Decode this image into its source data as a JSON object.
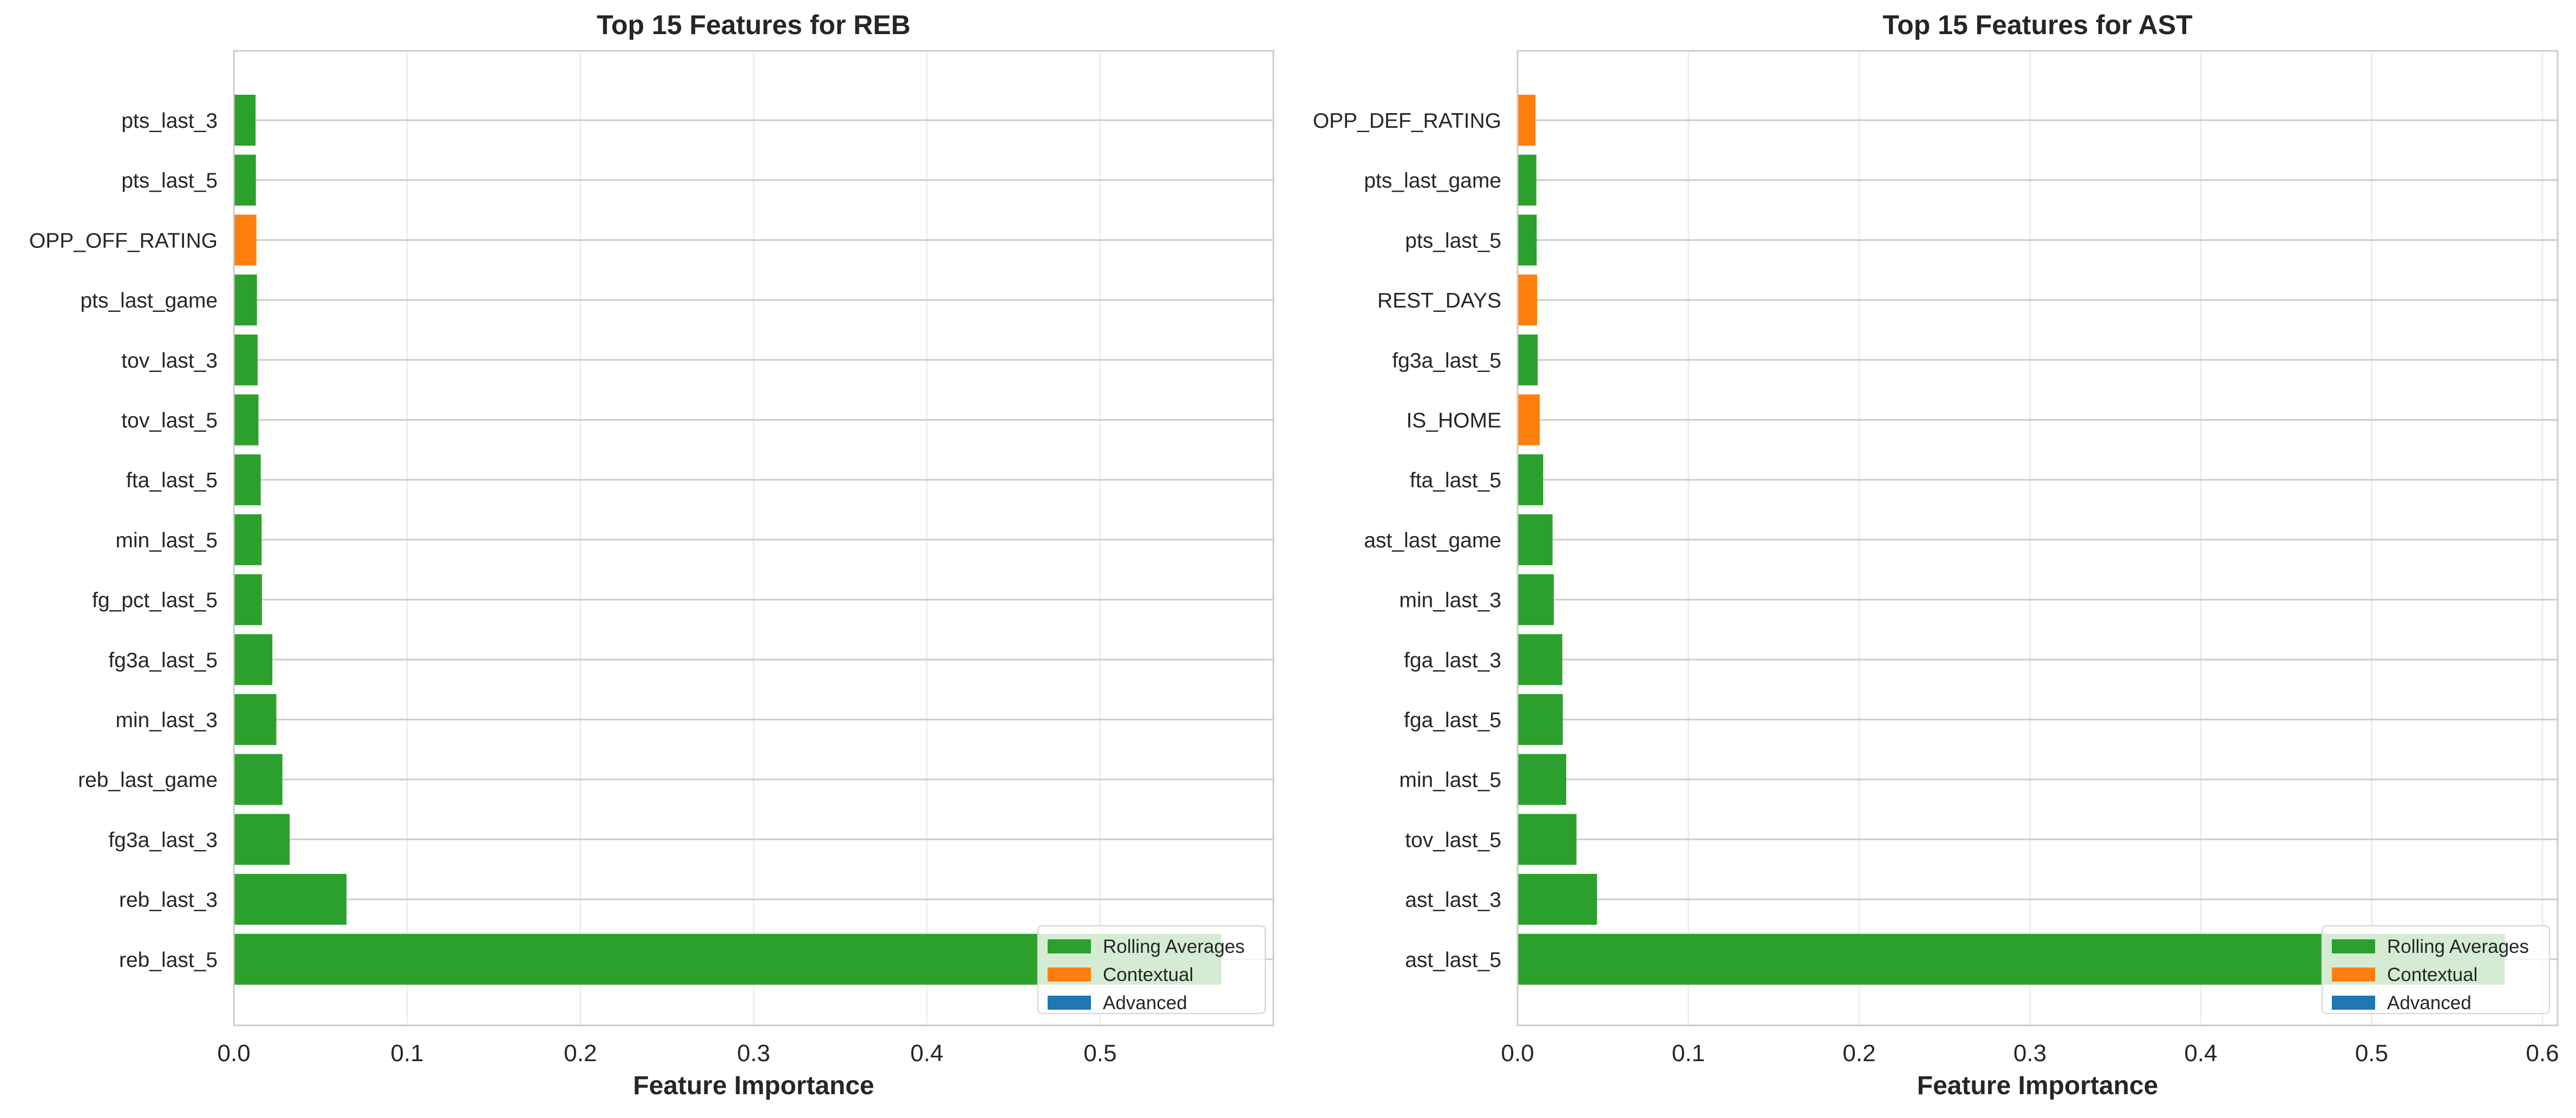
{
  "figure": {
    "background": "#ffffff",
    "grid_color": "#cccccc",
    "frame_color": "#cccccc",
    "text_color": "#262626",
    "colors": {
      "rolling_averages": "#2ca02c",
      "contextual": "#ff7f0e",
      "advanced": "#1f77b4"
    }
  },
  "chart_data": [
    {
      "type": "bar",
      "orientation": "horizontal",
      "title": "Top 15 Features for REB",
      "xlabel": "Feature Importance",
      "ylabel": "",
      "xlim": [
        0,
        0.6
      ],
      "xticks": [
        0.0,
        0.1,
        0.2,
        0.3,
        0.4,
        0.5
      ],
      "xtick_labels": [
        "0.0",
        "0.1",
        "0.2",
        "0.3",
        "0.4",
        "0.5"
      ],
      "grid": true,
      "legend_position": "lower-right",
      "legend": [
        {
          "label": "Rolling Averages",
          "color": "#2ca02c"
        },
        {
          "label": "Contextual",
          "color": "#ff7f0e"
        },
        {
          "label": "Advanced",
          "color": "#1f77b4"
        }
      ],
      "categories": [
        "pts_last_3",
        "pts_last_5",
        "OPP_OFF_RATING",
        "pts_last_game",
        "tov_last_3",
        "tov_last_5",
        "fta_last_5",
        "min_last_5",
        "fg_pct_last_5",
        "fg3a_last_5",
        "min_last_3",
        "reb_last_game",
        "fg3a_last_3",
        "reb_last_3",
        "reb_last_5"
      ],
      "values": [
        0.0125,
        0.0127,
        0.013,
        0.0133,
        0.0137,
        0.0142,
        0.0155,
        0.016,
        0.0162,
        0.0222,
        0.0245,
        0.028,
        0.0322,
        0.065,
        0.57
      ],
      "groups": [
        "Rolling Averages",
        "Rolling Averages",
        "Contextual",
        "Rolling Averages",
        "Rolling Averages",
        "Rolling Averages",
        "Rolling Averages",
        "Rolling Averages",
        "Rolling Averages",
        "Rolling Averages",
        "Rolling Averages",
        "Rolling Averages",
        "Rolling Averages",
        "Rolling Averages",
        "Rolling Averages"
      ]
    },
    {
      "type": "bar",
      "orientation": "horizontal",
      "title": "Top 15 Features for AST",
      "xlabel": "Feature Importance",
      "ylabel": "",
      "xlim": [
        0,
        0.6
      ],
      "xticks": [
        0.0,
        0.1,
        0.2,
        0.3,
        0.4,
        0.5,
        0.6
      ],
      "xtick_labels": [
        "0.0",
        "0.1",
        "0.2",
        "0.3",
        "0.4",
        "0.5",
        "0.6"
      ],
      "grid": true,
      "legend_position": "lower-right",
      "legend": [
        {
          "label": "Rolling Averages",
          "color": "#2ca02c"
        },
        {
          "label": "Contextual",
          "color": "#ff7f0e"
        },
        {
          "label": "Advanced",
          "color": "#1f77b4"
        }
      ],
      "categories": [
        "OPP_DEF_RATING",
        "pts_last_game",
        "pts_last_5",
        "REST_DAYS",
        "fg3a_last_5",
        "IS_HOME",
        "fta_last_5",
        "ast_last_game",
        "min_last_3",
        "fga_last_3",
        "fga_last_5",
        "min_last_5",
        "tov_last_5",
        "ast_last_3",
        "ast_last_5"
      ],
      "values": [
        0.0105,
        0.011,
        0.0112,
        0.0115,
        0.0118,
        0.013,
        0.015,
        0.0205,
        0.0212,
        0.0262,
        0.0265,
        0.0285,
        0.0345,
        0.0465,
        0.578
      ],
      "groups": [
        "Contextual",
        "Rolling Averages",
        "Rolling Averages",
        "Contextual",
        "Rolling Averages",
        "Contextual",
        "Rolling Averages",
        "Rolling Averages",
        "Rolling Averages",
        "Rolling Averages",
        "Rolling Averages",
        "Rolling Averages",
        "Rolling Averages",
        "Rolling Averages",
        "Rolling Averages"
      ]
    }
  ]
}
